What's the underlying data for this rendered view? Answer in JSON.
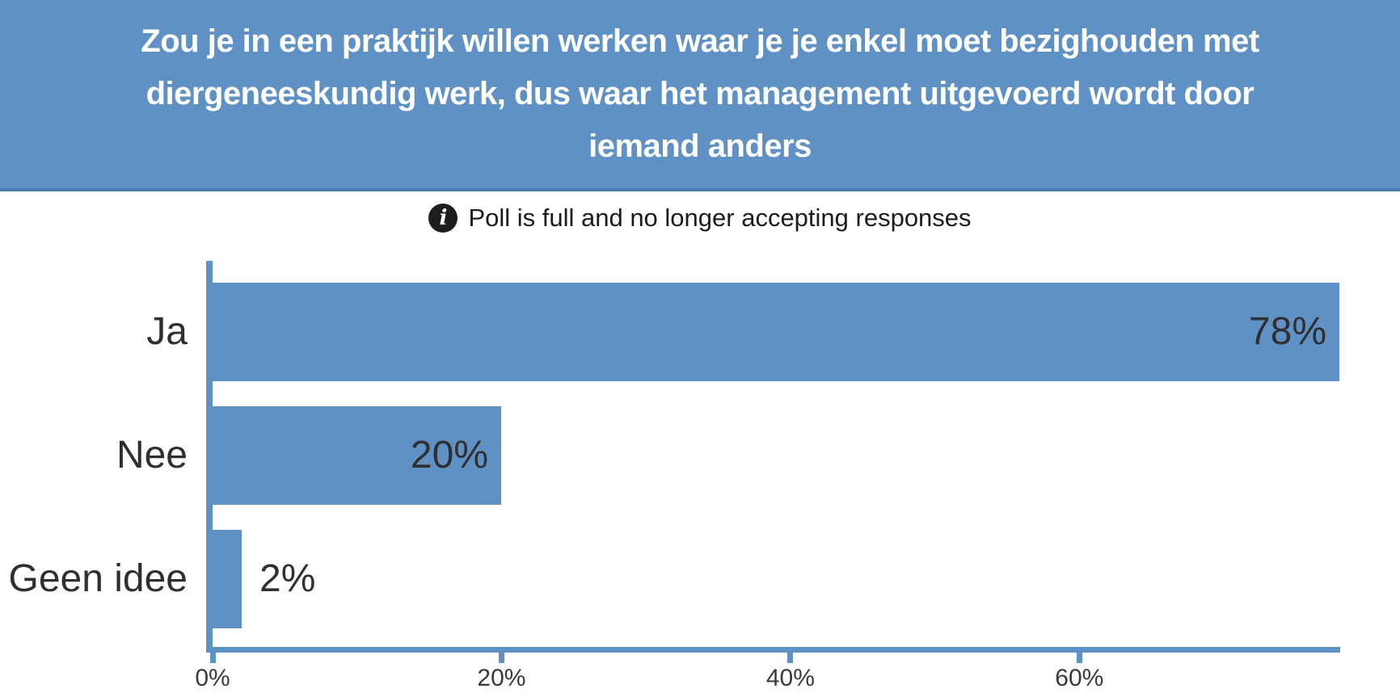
{
  "header": {
    "title": "Zou je in een praktijk willen werken waar je je enkel moet bezighouden met diergeneeskundig werk, dus waar het management uitgevoerd wordt door iemand anders",
    "title_lines": [
      "Zou je in een praktijk willen werken waar je je enkel moet bezighouden met",
      "diergeneeskundig werk, dus waar het management uitgevoerd wordt door",
      "iemand anders"
    ],
    "background_color": "#5f91c5",
    "border_color": "#4b7bb0",
    "text_color": "#ffffff"
  },
  "status": {
    "icon": "info-circle-icon",
    "message": "Poll is full and no longer accepting responses"
  },
  "chart_data": {
    "type": "bar",
    "orientation": "horizontal",
    "categories": [
      "Ja",
      "Nee",
      "Geen idee"
    ],
    "values": [
      78,
      20,
      2
    ],
    "value_labels": [
      "78%",
      "20%",
      "2%"
    ],
    "value_label_placement": [
      "inside",
      "inside",
      "outside"
    ],
    "x_tick_labels": [
      "0%",
      "20%",
      "40%",
      "60%"
    ],
    "x_tick_values": [
      0,
      20,
      40,
      60
    ],
    "xlim": [
      0,
      78
    ],
    "bar_color": "#5f91c5",
    "axis_color": "#5f91c5",
    "label_color": "#303030",
    "title": "Zou je in een praktijk willen werken waar je je enkel moet bezighouden met diergeneeskundig werk, dus waar het management uitgevoerd wordt door iemand anders",
    "xlabel": "",
    "ylabel": "",
    "grid": false,
    "legend": false
  }
}
